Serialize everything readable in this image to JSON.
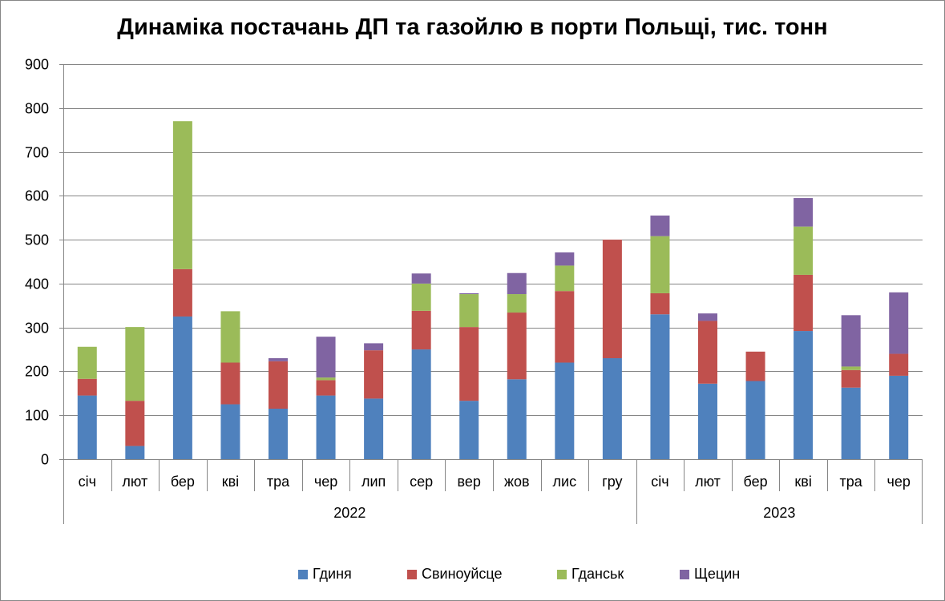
{
  "chart_data": {
    "type": "bar",
    "stacked": true,
    "title": "Динаміка постачань ДП та газойлю в порти Польщі, тис. тонн",
    "xlabel": "",
    "ylabel": "",
    "ylim": [
      0,
      900
    ],
    "yticks": [
      0,
      100,
      200,
      300,
      400,
      500,
      600,
      700,
      800,
      900
    ],
    "grid": true,
    "legend_position": "bottom",
    "categories": [
      "січ",
      "лют",
      "бер",
      "кві",
      "тра",
      "чер",
      "лип",
      "сер",
      "вер",
      "жов",
      "лис",
      "гру",
      "січ",
      "лют",
      "бер",
      "кві",
      "тра",
      "чер"
    ],
    "groups": [
      {
        "label": "2022",
        "count": 12
      },
      {
        "label": "2023",
        "count": 6
      }
    ],
    "series": [
      {
        "name": "Гдиня",
        "color": "#4F81BD",
        "values": [
          145,
          30,
          325,
          125,
          115,
          145,
          138,
          250,
          133,
          182,
          220,
          230,
          330,
          172,
          178,
          292,
          163,
          190
        ]
      },
      {
        "name": "Свиноуйсце",
        "color": "#C0504D",
        "values": [
          38,
          103,
          108,
          95,
          108,
          35,
          110,
          88,
          168,
          152,
          163,
          270,
          48,
          143,
          67,
          128,
          40,
          50
        ]
      },
      {
        "name": "Гданськ",
        "color": "#9BBB59",
        "values": [
          73,
          168,
          337,
          117,
          0,
          6,
          0,
          62,
          75,
          42,
          58,
          0,
          130,
          0,
          0,
          110,
          8,
          0
        ]
      },
      {
        "name": "Щецин",
        "color": "#8064A2",
        "values": [
          0,
          0,
          0,
          0,
          7,
          93,
          16,
          23,
          2,
          48,
          30,
          0,
          47,
          17,
          0,
          65,
          117,
          140
        ]
      }
    ]
  }
}
